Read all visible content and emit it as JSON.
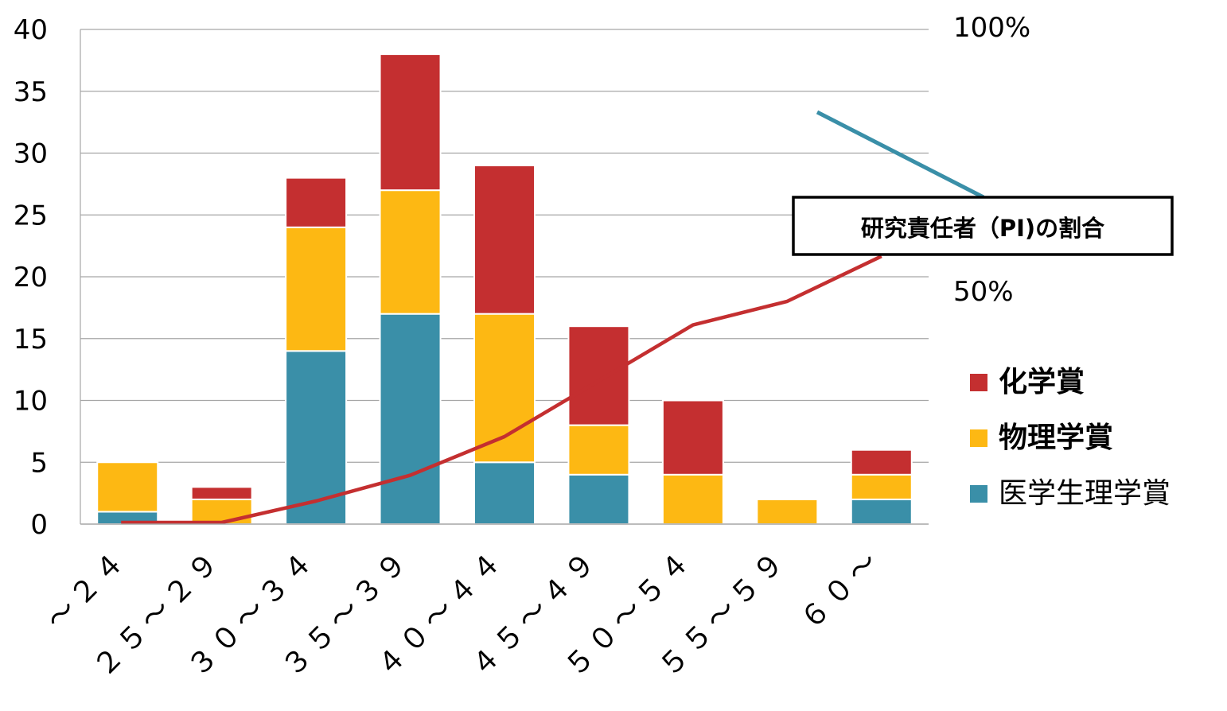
{
  "chart_data": {
    "type": "bar",
    "stacked": true,
    "categories": [
      "～２４",
      "２５～２９",
      "３０～３４",
      "３５～３９",
      "４０～４４",
      "４５～４９",
      "５０～５４",
      "５５～５９",
      "６０～"
    ],
    "series": [
      {
        "name": "医学生理学賞",
        "color": "#3a8fa8",
        "values": [
          1,
          0,
          14,
          17,
          5,
          4,
          0,
          0,
          2
        ]
      },
      {
        "name": "物理学賞",
        "color": "#fdb813",
        "values": [
          4,
          2,
          10,
          10,
          12,
          4,
          4,
          2,
          2
        ]
      },
      {
        "name": "化学賞",
        "color": "#c42f30",
        "values": [
          0,
          1,
          4,
          11,
          12,
          8,
          6,
          0,
          2
        ]
      }
    ],
    "line": {
      "color": "#c42f30",
      "axis": "secondary",
      "values": [
        0,
        0,
        10,
        22,
        40,
        66,
        92,
        103,
        124
      ]
    },
    "ylim": [
      0,
      40
    ],
    "yticks": [
      "0",
      "5",
      "10",
      "15",
      "20",
      "25",
      "30",
      "35",
      "40"
    ],
    "y2_labels": [
      "100%",
      "50%"
    ],
    "grid": true,
    "legend_position": "right",
    "legend_order": [
      "化学賞",
      "物理学賞",
      "医学生理学賞"
    ],
    "annotation": {
      "text": "研究責任者（PI)の割合",
      "color": "#3a8fa8"
    }
  }
}
